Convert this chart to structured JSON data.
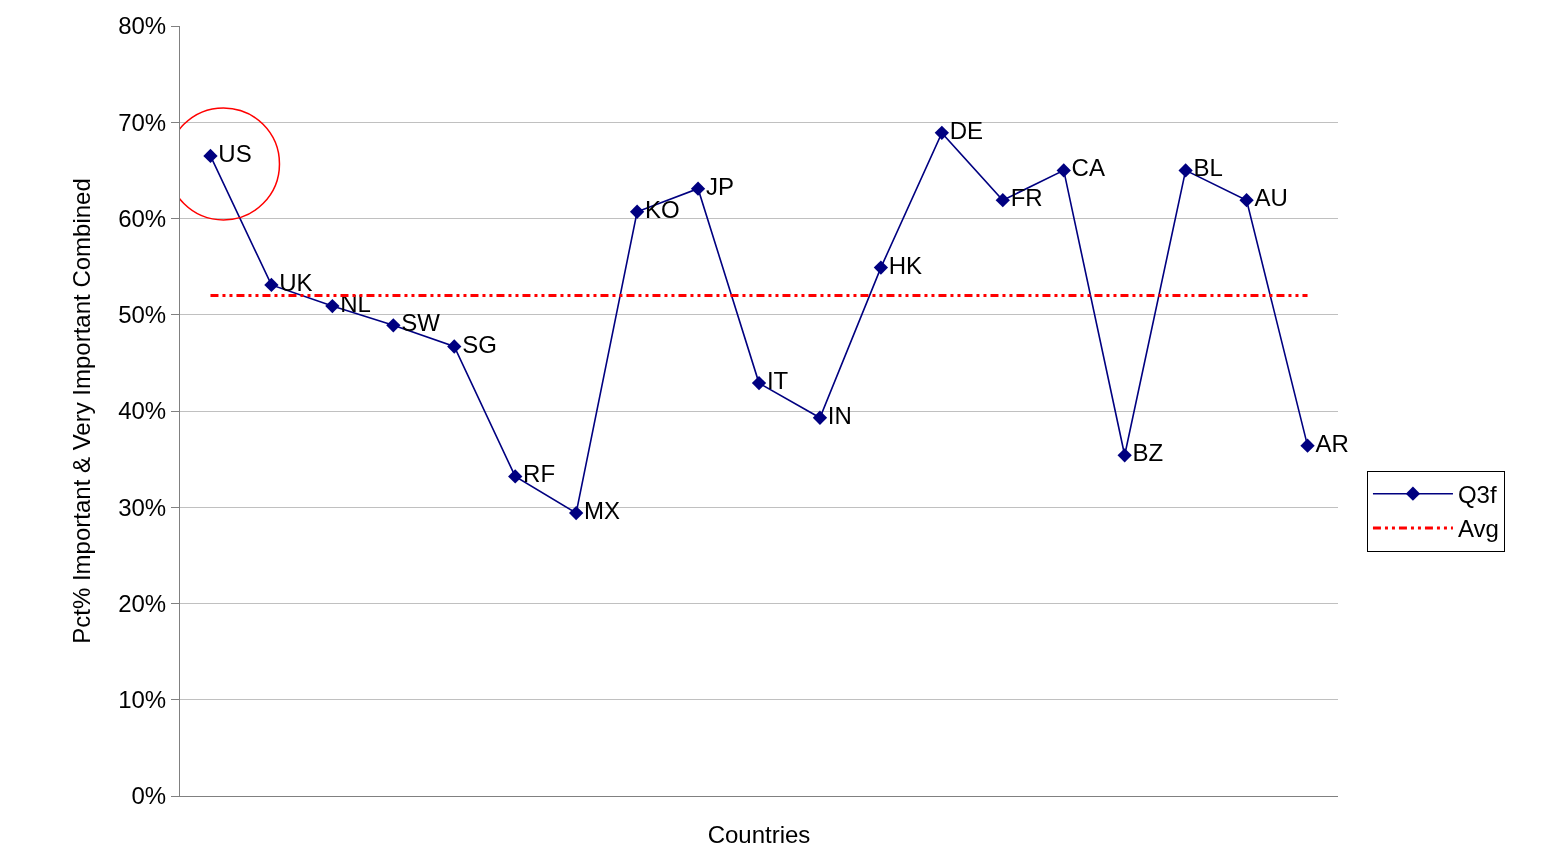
{
  "chart_data": {
    "type": "line",
    "xlabel": "Countries",
    "ylabel": "Pct% Important & Very Important Combined",
    "categories": [
      "US",
      "UK",
      "NL",
      "SW",
      "SG",
      "RF",
      "MX",
      "KO",
      "JP",
      "IT",
      "IN",
      "HK",
      "DE",
      "FR",
      "CA",
      "BZ",
      "BL",
      "AU",
      "AR"
    ],
    "series": [
      {
        "name": "Q3f",
        "color": "#000080",
        "marker": "diamond",
        "line_style": "solid",
        "values": [
          66.5,
          53.1,
          50.9,
          48.9,
          46.7,
          33.2,
          29.4,
          60.7,
          63.1,
          42.9,
          39.3,
          54.9,
          68.9,
          61.9,
          65.0,
          35.4,
          65.0,
          61.9,
          36.4
        ]
      },
      {
        "name": "Avg",
        "color": "#ff0000",
        "marker": "none",
        "line_style": "dashed",
        "values": [
          52,
          52,
          52,
          52,
          52,
          52,
          52,
          52,
          52,
          52,
          52,
          52,
          52,
          52,
          52,
          52,
          52,
          52,
          52
        ]
      }
    ],
    "ylim": [
      0,
      80
    ],
    "yticks": [
      {
        "value": 0,
        "label": "0%"
      },
      {
        "value": 10,
        "label": "10%"
      },
      {
        "value": 20,
        "label": "20%"
      },
      {
        "value": 30,
        "label": "30%"
      },
      {
        "value": 40,
        "label": "40%"
      },
      {
        "value": 50,
        "label": "50%"
      },
      {
        "value": 60,
        "label": "60%"
      },
      {
        "value": 70,
        "label": "70%"
      },
      {
        "value": 80,
        "label": "80%"
      }
    ],
    "grid": "y",
    "legend": "right",
    "tick_labels": "y"
  }
}
